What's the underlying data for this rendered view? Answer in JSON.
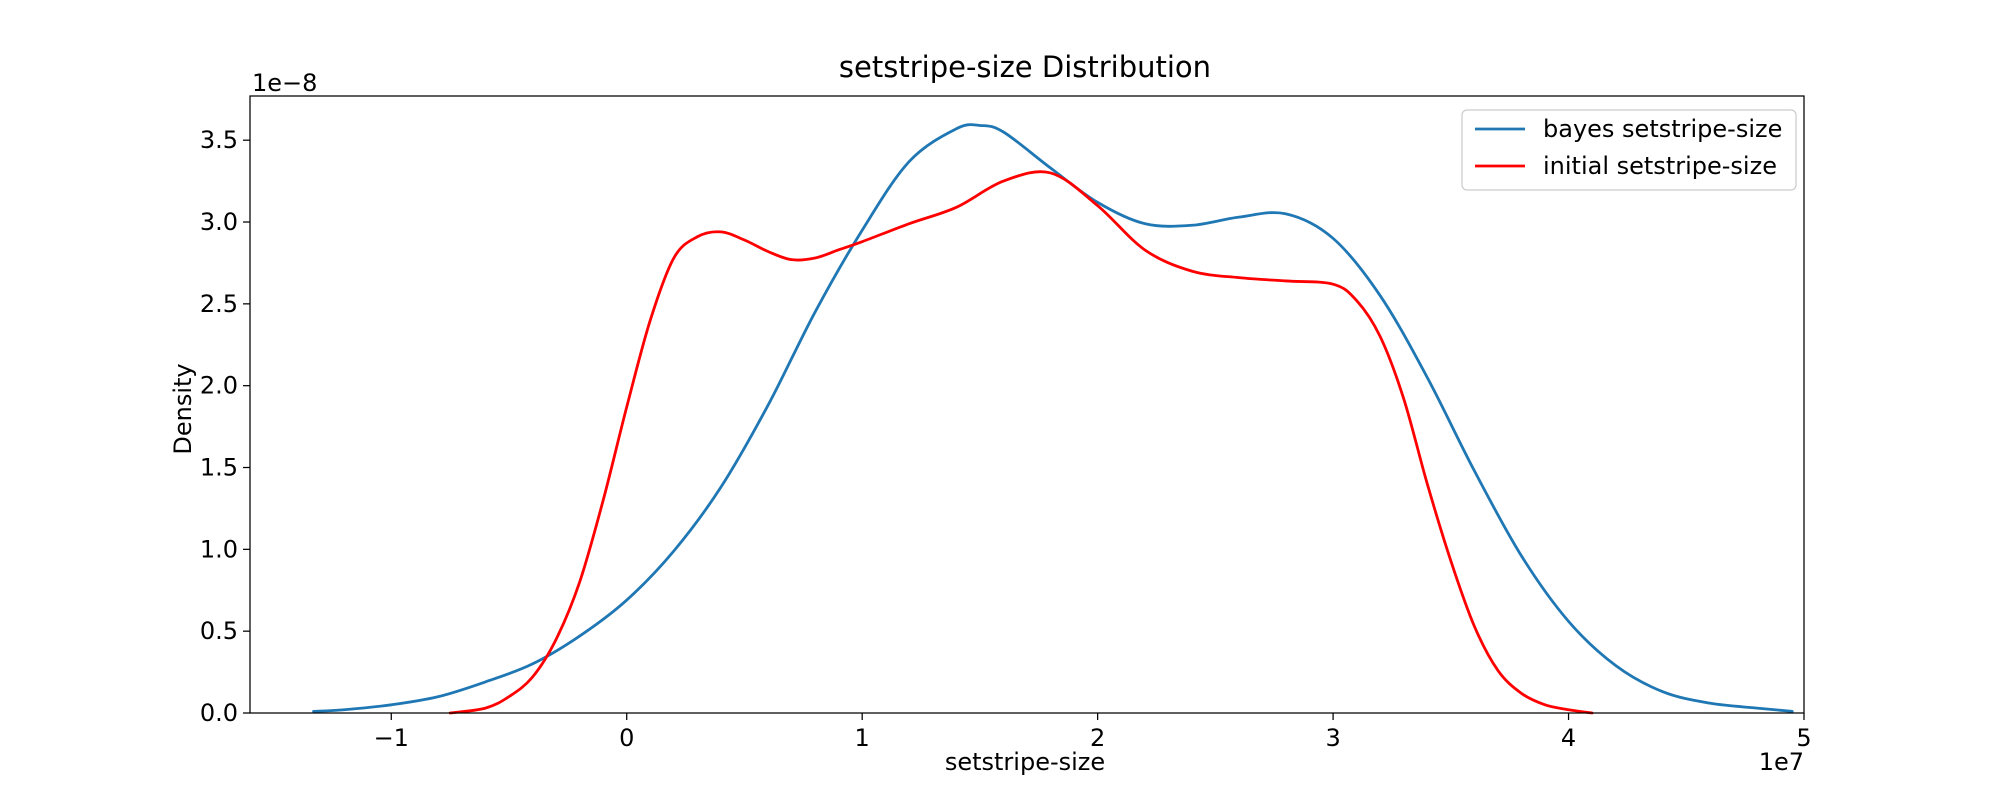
{
  "chart_data": {
    "type": "line",
    "title": "setstripe-size Distribution",
    "xlabel": "setstripe-size",
    "ylabel": "Density",
    "x_offset_label": "1e7",
    "y_offset_label": "1e−8",
    "xlim": [
      -1.6,
      5.0
    ],
    "ylim": [
      0,
      3.77
    ],
    "x_ticks": [
      -1,
      0,
      1,
      2,
      3,
      4,
      5
    ],
    "x_tick_labels": [
      "−1",
      "0",
      "1",
      "2",
      "3",
      "4",
      "5"
    ],
    "y_ticks": [
      0,
      0.5,
      1.0,
      1.5,
      2.0,
      2.5,
      3.0,
      3.5
    ],
    "y_tick_labels": [
      "0.0",
      "0.5",
      "1.0",
      "1.5",
      "2.0",
      "2.5",
      "3.0",
      "3.5"
    ],
    "grid": false,
    "legend_position": "top-right",
    "series": [
      {
        "name": "bayes setstripe-size",
        "color": "#1f77b4",
        "x": [
          -1.33,
          -1.2,
          -1.0,
          -0.8,
          -0.6,
          -0.4,
          -0.2,
          0.0,
          0.2,
          0.4,
          0.6,
          0.8,
          1.0,
          1.2,
          1.4,
          1.5,
          1.6,
          1.8,
          2.0,
          2.2,
          2.4,
          2.6,
          2.8,
          3.0,
          3.2,
          3.4,
          3.6,
          3.8,
          4.0,
          4.2,
          4.4,
          4.6,
          4.8,
          4.95
        ],
        "y": [
          0.01,
          0.02,
          0.05,
          0.1,
          0.19,
          0.3,
          0.47,
          0.69,
          0.99,
          1.38,
          1.88,
          2.45,
          2.95,
          3.37,
          3.57,
          3.59,
          3.55,
          3.33,
          3.12,
          2.99,
          2.98,
          3.03,
          3.05,
          2.9,
          2.55,
          2.05,
          1.48,
          0.96,
          0.56,
          0.29,
          0.13,
          0.06,
          0.03,
          0.01
        ]
      },
      {
        "name": "initial setstripe-size",
        "color": "#ff0000",
        "x": [
          -0.75,
          -0.6,
          -0.5,
          -0.4,
          -0.3,
          -0.2,
          -0.1,
          0.0,
          0.1,
          0.2,
          0.3,
          0.4,
          0.5,
          0.6,
          0.7,
          0.8,
          0.9,
          1.0,
          1.2,
          1.4,
          1.6,
          1.8,
          2.0,
          2.2,
          2.4,
          2.6,
          2.8,
          3.0,
          3.1,
          3.2,
          3.3,
          3.4,
          3.5,
          3.6,
          3.7,
          3.8,
          3.9,
          4.0,
          4.1
        ],
        "y": [
          0.0,
          0.03,
          0.1,
          0.22,
          0.45,
          0.8,
          1.3,
          1.87,
          2.4,
          2.78,
          2.91,
          2.94,
          2.89,
          2.82,
          2.77,
          2.78,
          2.83,
          2.88,
          2.99,
          3.09,
          3.25,
          3.3,
          3.1,
          2.83,
          2.7,
          2.66,
          2.64,
          2.62,
          2.52,
          2.3,
          1.92,
          1.4,
          0.93,
          0.53,
          0.26,
          0.12,
          0.05,
          0.02,
          0.0
        ]
      }
    ]
  }
}
